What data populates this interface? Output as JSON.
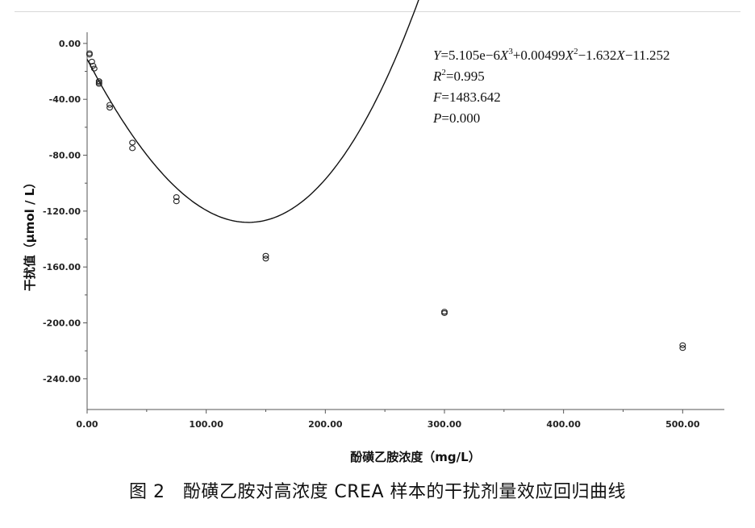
{
  "caption": "图 2　酚磺乙胺对高浓度 CREA 样本的干扰剂量效应回归曲线",
  "chart_data": {
    "type": "scatter",
    "xlabel": "酚磺乙胺浓度（mg/L）",
    "ylabel": "干扰值（μmol / L）",
    "xlim": [
      0,
      535
    ],
    "ylim": [
      -262,
      8
    ],
    "x_ticks": [
      "0.00",
      "100.00",
      "200.00",
      "300.00",
      "400.00",
      "500.00"
    ],
    "x_tick_values": [
      0,
      100,
      200,
      300,
      400,
      500
    ],
    "y_ticks": [
      "0.00",
      "-40.00",
      "-80.00",
      "-120.00",
      "-160.00",
      "-200.00",
      "-240.00"
    ],
    "y_tick_values": [
      0,
      -40,
      -80,
      -120,
      -160,
      -200,
      -240
    ],
    "points": [
      {
        "x": 2,
        "y": -7
      },
      {
        "x": 2,
        "y": -8
      },
      {
        "x": 4,
        "y": -13
      },
      {
        "x": 5,
        "y": -16
      },
      {
        "x": 6,
        "y": -18
      },
      {
        "x": 10,
        "y": -27
      },
      {
        "x": 10,
        "y": -28
      },
      {
        "x": 10,
        "y": -29
      },
      {
        "x": 19,
        "y": -44
      },
      {
        "x": 19,
        "y": -46
      },
      {
        "x": 38,
        "y": -71
      },
      {
        "x": 38,
        "y": -75
      },
      {
        "x": 75,
        "y": -110
      },
      {
        "x": 75,
        "y": -113
      },
      {
        "x": 150,
        "y": -152
      },
      {
        "x": 150,
        "y": -154
      },
      {
        "x": 300,
        "y": -192
      },
      {
        "x": 300,
        "y": -193
      },
      {
        "x": 500,
        "y": -216
      },
      {
        "x": 500,
        "y": -218
      }
    ],
    "fit": {
      "model": "cubic",
      "coefficients": {
        "a3": 5.105e-06,
        "a2": 0.00499,
        "a1": -1.632,
        "a0": -11.252
      },
      "x_range": [
        0,
        535
      ]
    },
    "annotations": {
      "equation": {
        "y": "Y",
        "t1": "=5.105e−6",
        "x3": "X",
        "s3": "3",
        "t2": "+0.00499",
        "x2": "X",
        "s2": "2",
        "t3": "−1.632",
        "x1": "X",
        "t4": "−11.252"
      },
      "r2": {
        "r": "R",
        "s": "2",
        "v": "=0.995"
      },
      "f": {
        "f": "F",
        "v": "=1483.642"
      },
      "p": {
        "p": "P",
        "v": "=0.000"
      }
    },
    "grid": false,
    "legend": "none"
  }
}
